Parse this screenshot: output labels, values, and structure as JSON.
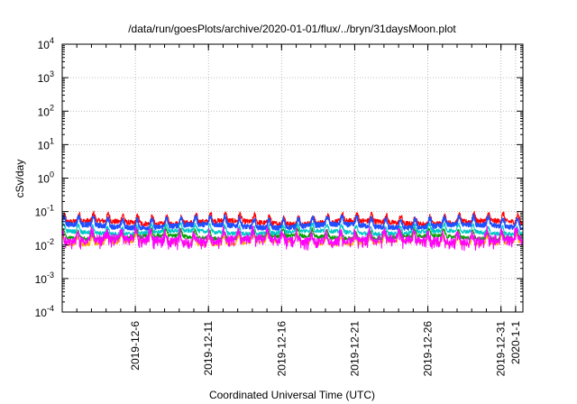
{
  "chart_data": {
    "type": "line",
    "title": "/data/run/goesPlots/archive/2020-01-01/flux/../bryn/31daysMoon.plot",
    "xlabel": "Coordinated Universal Time (UTC)",
    "ylabel": "cSv/day",
    "y_scale": "log",
    "ylim_exponents": [
      -4,
      4
    ],
    "y_ticks": [
      {
        "base": "10",
        "exp": "-4"
      },
      {
        "base": "10",
        "exp": "-3"
      },
      {
        "base": "10",
        "exp": "-2"
      },
      {
        "base": "10",
        "exp": "-1"
      },
      {
        "base": "10",
        "exp": "0"
      },
      {
        "base": "10",
        "exp": "1"
      },
      {
        "base": "10",
        "exp": "2"
      },
      {
        "base": "10",
        "exp": "3"
      },
      {
        "base": "10",
        "exp": "4"
      }
    ],
    "xlim": [
      "2019-12-01",
      "2020-01-01T12:00"
    ],
    "x_tick_labels": [
      {
        "label": "2019-12-6",
        "date": "2019-12-06"
      },
      {
        "label": "2019-12-11",
        "date": "2019-12-11"
      },
      {
        "label": "2019-12-16",
        "date": "2019-12-16"
      },
      {
        "label": "2019-12-21",
        "date": "2019-12-21"
      },
      {
        "label": "2019-12-26",
        "date": "2019-12-26"
      },
      {
        "label": "2019-12-31",
        "date": "2019-12-31"
      },
      {
        "label": "2020-1-1",
        "date": "2020-01-01"
      }
    ],
    "x_minor_ticks": "daily",
    "grid": true,
    "legend": "none",
    "series": [
      {
        "color": "#ff0000",
        "base_log10": -1.25,
        "amplitude": 0.22,
        "noise": 0.08
      },
      {
        "color": "#1f4fff",
        "base_log10": -1.35,
        "amplitude": 0.24,
        "noise": 0.07
      },
      {
        "color": "#00c8c8",
        "base_log10": -1.55,
        "amplitude": 0.2,
        "noise": 0.06
      },
      {
        "color": "#00a000",
        "base_log10": -1.7,
        "amplitude": 0.2,
        "noise": 0.06
      },
      {
        "color": "#ffb000",
        "base_log10": -1.85,
        "amplitude": 0.22,
        "noise": 0.06
      },
      {
        "color": "#ff00ff",
        "base_log10": -1.75,
        "amplitude": 0.28,
        "noise": 0.12
      }
    ]
  }
}
